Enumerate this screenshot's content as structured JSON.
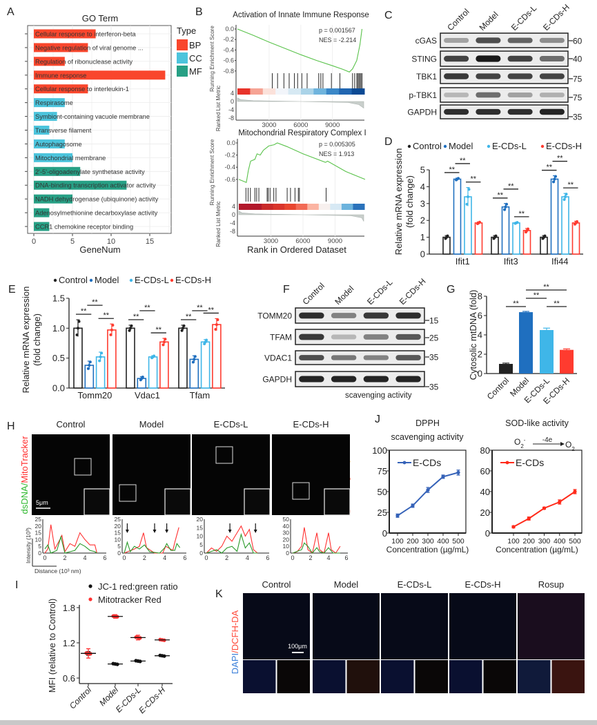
{
  "panel_labels": {
    "A": "A",
    "B": "B",
    "C": "C",
    "D": "D",
    "E": "E",
    "F": "F",
    "G": "G",
    "H": "H",
    "I": "I",
    "J": "J",
    "K": "K"
  },
  "colors": {
    "BP": "#f9462c",
    "CC": "#4cc4dc",
    "MF": "#27a085",
    "control": "#222222",
    "model": "#1f6fbf",
    "ecds_l": "#3fb6e8",
    "ecds_h": "#ff3b2f",
    "gsea_curve": "#59c24a",
    "dsDNA": "#2eb82e",
    "mitotracker": "#ff3030",
    "dapi": "#3a7fd9",
    "dcfh": "#ff4a3a"
  },
  "chart_data": [
    {
      "type": "bar",
      "orientation": "horizontal",
      "title": "GO Term",
      "xlabel": "GeneNum",
      "xticks": [
        0,
        5,
        10,
        15
      ],
      "legend_title": "Type",
      "legend": [
        "BP",
        "CC",
        "MF"
      ],
      "legend_placement": "right",
      "categories": [
        "Cellular response to interferon-beta",
        "Negative regulation of viral genome ...",
        "Regulation of ribonuclease activity",
        "Immune response",
        "Cellular response to interleukin-1",
        "Respirasome",
        "Symbiont-containing vacuole membrane",
        "Transverse filament",
        "Autophagosome",
        "Mitochondrial membrane",
        "2'-5'-oligoadenylate synthetase activity",
        "DNA-binding transcription activator activity",
        "NADH dehydrogenase (ubiquinone) activity",
        "Adenosylmethionine decarboxylase activity",
        "CCR1 chemokine receptor binding"
      ],
      "values": [
        8,
        7,
        4,
        17,
        7,
        4,
        3,
        2,
        4,
        5,
        6,
        12,
        5,
        2,
        2
      ],
      "types": [
        "BP",
        "BP",
        "BP",
        "BP",
        "BP",
        "CC",
        "CC",
        "CC",
        "CC",
        "CC",
        "MF",
        "MF",
        "MF",
        "MF",
        "MF"
      ],
      "grid": true
    },
    {
      "type": "line",
      "title": "Activation of Innate Immune Response",
      "p_text": "p = 0.001567",
      "nes_text": "NES = -2.214",
      "ylabel": "Running Enrichment Score",
      "ylabel2": "Ranked List Metric",
      "yticks": [
        "0.0",
        "-0.2",
        "-0.4",
        "-0.6",
        "-0.8"
      ],
      "metric_ticks": [
        "4",
        "0",
        "-4",
        "-8"
      ],
      "xticks": [
        3000,
        6000,
        9000
      ],
      "curve": [
        [
          0,
          0.0
        ],
        [
          1500,
          -0.12
        ],
        [
          3000,
          -0.25
        ],
        [
          4500,
          -0.37
        ],
        [
          6000,
          -0.49
        ],
        [
          7500,
          -0.6
        ],
        [
          9000,
          -0.7
        ],
        [
          10000,
          -0.77
        ],
        [
          10600,
          -0.82
        ],
        [
          10900,
          -0.76
        ],
        [
          11300,
          -0.6
        ],
        [
          11600,
          -0.3
        ],
        [
          11800,
          0.0
        ]
      ],
      "hits": [
        3300,
        3800,
        4400,
        4900,
        5400,
        5700,
        6100,
        6600,
        7700,
        7900,
        8100,
        8900,
        9700,
        10900,
        11100,
        11300,
        11400,
        11500,
        11600,
        11700,
        11800
      ],
      "colorbar": [
        "#e8332a",
        "#f6a394",
        "#fbe1da",
        "#f2f5fa",
        "#d6e9f3",
        "#aad3e8",
        "#6fb4dd",
        "#3b88c8",
        "#2166b1",
        "#0b4a94"
      ]
    },
    {
      "type": "line",
      "title": "Mitochondrial Respiratory Complex I",
      "p_text": "p = 0.005305",
      "nes_text": "NES = 1.913",
      "ylabel": "Running Enrichment Score",
      "ylabel2": "Ranked List Metric",
      "xlabel": "Rank in Ordered Dataset",
      "yticks": [
        "0.0",
        "-0.2",
        "-0.4",
        "-0.6"
      ],
      "metric_ticks": [
        "4",
        "0",
        "-4",
        "-8"
      ],
      "xticks": [
        3000,
        6000,
        9000
      ],
      "curve": [
        [
          0,
          -0.6
        ],
        [
          700,
          -0.65
        ],
        [
          900,
          -0.45
        ],
        [
          1100,
          -0.3
        ],
        [
          1500,
          -0.27
        ],
        [
          1700,
          -0.18
        ],
        [
          2000,
          -0.2
        ],
        [
          2300,
          -0.12
        ],
        [
          2800,
          -0.05
        ],
        [
          3300,
          -0.03
        ],
        [
          3600,
          0.0
        ],
        [
          4500,
          -0.06
        ],
        [
          6000,
          -0.18
        ],
        [
          8100,
          -0.32
        ],
        [
          8300,
          -0.3
        ],
        [
          10000,
          -0.47
        ],
        [
          11800,
          -0.6
        ]
      ],
      "hits": [
        667,
        875,
        1083,
        1500,
        1667,
        1875,
        2646,
        2750,
        2917,
        3271,
        3479,
        4521,
        4833,
        5250,
        5563,
        5667,
        8167
      ],
      "colorbar": [
        "#b2182b",
        "#b2182b",
        "#c92a2a",
        "#d9342b",
        "#e8452f",
        "#f26a55",
        "#fbb4a2",
        "#f7f0ee",
        "#d7e9f4",
        "#6cb3dd",
        "#2a72bb"
      ]
    },
    {
      "type": "bar",
      "legend": [
        "Control",
        "Model",
        "E-CDs-L",
        "E-CDs-H"
      ],
      "ylabel": "Relative mRNA expression",
      "ylabel2": "(fold change)",
      "categories": [
        "Ifit1",
        "Ifit3",
        "Ifi44"
      ],
      "yticks": [
        0,
        1,
        2,
        3,
        4,
        5
      ],
      "ylim": [
        0,
        5
      ],
      "series": [
        {
          "name": "Control",
          "values": [
            1.0,
            1.0,
            1.0
          ],
          "sd": [
            0.1,
            0.1,
            0.1
          ]
        },
        {
          "name": "Model",
          "values": [
            4.45,
            2.8,
            4.45
          ],
          "sd": [
            0.06,
            0.2,
            0.2
          ]
        },
        {
          "name": "E-CDs-L",
          "values": [
            3.4,
            1.85,
            3.4
          ],
          "sd": [
            0.55,
            0.04,
            0.2
          ]
        },
        {
          "name": "E-CDs-H",
          "values": [
            1.85,
            1.4,
            1.85
          ],
          "sd": [
            0.06,
            0.12,
            0.1
          ]
        }
      ],
      "significance": "**"
    },
    {
      "type": "bar",
      "legend": [
        "Control",
        "Model",
        "E-CDs-L",
        "E-CDs-H"
      ],
      "ylabel": "Relative mRNA expression",
      "ylabel2": "(fold change)",
      "categories": [
        "Tomm20",
        "Vdac1",
        "Tfam"
      ],
      "yticks": [
        "0.0",
        "0.5",
        "1.0",
        "1.5"
      ],
      "ylim": [
        0,
        1.5
      ],
      "series": [
        {
          "name": "Control",
          "values": [
            1.0,
            1.0,
            1.0
          ],
          "sd": [
            0.14,
            0.05,
            0.05
          ]
        },
        {
          "name": "Model",
          "values": [
            0.38,
            0.16,
            0.48
          ],
          "sd": [
            0.07,
            0.03,
            0.06
          ]
        },
        {
          "name": "E-CDs-L",
          "values": [
            0.52,
            0.52,
            0.77
          ],
          "sd": [
            0.08,
            0.02,
            0.04
          ]
        },
        {
          "name": "E-CDs-H",
          "values": [
            0.97,
            0.77,
            1.06
          ],
          "sd": [
            0.1,
            0.06,
            0.1
          ]
        }
      ],
      "significance": "**"
    },
    {
      "type": "bar",
      "ylabel": "Cytosolic mtDNA (fold)",
      "categories": [
        "Control",
        "Model",
        "E-CDs-L",
        "E-CDs-H"
      ],
      "values": [
        1.0,
        6.35,
        4.5,
        2.45
      ],
      "sd": [
        0.08,
        0.08,
        0.2,
        0.1
      ],
      "yticks": [
        0,
        2,
        4,
        6,
        8
      ],
      "ylim": [
        0,
        8
      ],
      "significance": "**"
    },
    {
      "type": "scatter",
      "ylabel": "MFI (relative to Control)",
      "categories": [
        "Control",
        "Model",
        "E-CDs-L",
        "E-CDs-H"
      ],
      "yticks": [
        "0.6",
        "1.2",
        "1.8"
      ],
      "ylim": [
        0.6,
        1.8
      ],
      "series": [
        {
          "name": "JC-1 red:green ratio",
          "values": [
            1.02,
            0.84,
            0.89,
            0.98
          ],
          "sd": [
            0.03,
            0.01,
            0.01,
            0.01
          ]
        },
        {
          "name": "Mitotracker Red",
          "values": [
            1.02,
            1.65,
            1.29,
            1.25
          ],
          "sd": [
            0.08,
            0.03,
            0.04,
            0.01
          ]
        }
      ]
    },
    {
      "type": "line",
      "title": "DPPH",
      "subtitle": "scavenging activity",
      "xlabel": "Concentration (µg/mL)",
      "x": [
        100,
        200,
        300,
        400,
        500
      ],
      "yticks": [
        0,
        25,
        50,
        75,
        100
      ],
      "ylim": [
        0,
        100
      ],
      "series": [
        {
          "name": "E-CDs",
          "values": [
            21,
            33,
            52,
            68,
            73
          ],
          "sd": [
            2,
            2,
            3,
            2,
            3
          ]
        }
      ]
    },
    {
      "type": "line",
      "title": "SOD-like activity",
      "equation": {
        "left": "O",
        "left_sub": "2",
        "left_sup": "-",
        "arrow_label": "-4e",
        "arrow_sup": "-",
        "right": "O",
        "right_sub": "2"
      },
      "xlabel": "Concentration (µg/mL)",
      "x": [
        100,
        200,
        300,
        400,
        500
      ],
      "yticks": [
        0,
        20,
        40,
        60,
        80
      ],
      "ylim": [
        0,
        80
      ],
      "series": [
        {
          "name": "E-CDs",
          "values": [
            6,
            14,
            24,
            30,
            40
          ],
          "sd": [
            1,
            1.5,
            1,
            2,
            2
          ]
        }
      ]
    },
    {
      "type": "line",
      "title": "Control",
      "ylabel": "Intensity (10³)",
      "xlabel": "Distance   (10³ nm)",
      "xticks": [
        0,
        2,
        4,
        6
      ],
      "yticks": [
        0,
        5,
        10,
        15,
        20,
        25
      ],
      "ylim": [
        0,
        25
      ],
      "red": [
        [
          0,
          0
        ],
        [
          0.3,
          3
        ],
        [
          0.6,
          21
        ],
        [
          1,
          3
        ],
        [
          1.5,
          10
        ],
        [
          1.7,
          13
        ],
        [
          2,
          1
        ],
        [
          2.5,
          7
        ],
        [
          3,
          5
        ],
        [
          3.5,
          15
        ],
        [
          4,
          10
        ],
        [
          4.5,
          6
        ],
        [
          5,
          6
        ],
        [
          5.2,
          0
        ]
      ],
      "green": [
        [
          0,
          3
        ],
        [
          0.3,
          6
        ],
        [
          0.6,
          0
        ],
        [
          1.2,
          2
        ],
        [
          1.6,
          12
        ],
        [
          2,
          0
        ],
        [
          3,
          2
        ],
        [
          3.5,
          7
        ],
        [
          4,
          5
        ],
        [
          4.5,
          2
        ],
        [
          5,
          1
        ],
        [
          5.2,
          0
        ]
      ],
      "arrows": []
    },
    {
      "type": "line",
      "title": "Model",
      "xticks": [
        0,
        2,
        4,
        6
      ],
      "yticks": [
        0,
        5,
        10,
        15,
        20,
        25
      ],
      "ylim": [
        0,
        25
      ],
      "red": [
        [
          0,
          0
        ],
        [
          1,
          3
        ],
        [
          1.5,
          5
        ],
        [
          1.9,
          15
        ],
        [
          2.2,
          4
        ],
        [
          3,
          0
        ],
        [
          3.8,
          0
        ],
        [
          4.1,
          5
        ],
        [
          4.8,
          2
        ],
        [
          5,
          8
        ],
        [
          5.4,
          19
        ]
      ],
      "green": [
        [
          0,
          0
        ],
        [
          0.3,
          8
        ],
        [
          0.6,
          1
        ],
        [
          1,
          5
        ],
        [
          1.5,
          3
        ],
        [
          2,
          6
        ],
        [
          2.5,
          1
        ],
        [
          3.5,
          0
        ],
        [
          4,
          4
        ],
        [
          4.2,
          7
        ],
        [
          4.6,
          2
        ],
        [
          5,
          2
        ],
        [
          5.2,
          7
        ],
        [
          5.5,
          4
        ]
      ],
      "arrows": [
        0.3,
        3.0,
        4.2
      ]
    },
    {
      "type": "line",
      "title": "E-CDs-L",
      "xticks": [
        0,
        2,
        4,
        6
      ],
      "yticks": [
        0,
        5,
        10,
        15,
        20
      ],
      "ylim": [
        0,
        20
      ],
      "red": [
        [
          0,
          0
        ],
        [
          0.5,
          3
        ],
        [
          1,
          1
        ],
        [
          1.5,
          4
        ],
        [
          2,
          10
        ],
        [
          2.5,
          7
        ],
        [
          3,
          12
        ],
        [
          3.4,
          16
        ],
        [
          3.8,
          10
        ],
        [
          4.2,
          14
        ],
        [
          4.6,
          2
        ],
        [
          5,
          0
        ]
      ],
      "green": [
        [
          0,
          0
        ],
        [
          1,
          2
        ],
        [
          1.5,
          0
        ],
        [
          2,
          3
        ],
        [
          2.5,
          4
        ],
        [
          3,
          1
        ],
        [
          3.4,
          11
        ],
        [
          3.8,
          3
        ],
        [
          4.2,
          6
        ],
        [
          4.6,
          0
        ],
        [
          5,
          0
        ]
      ],
      "arrows": [
        2.3,
        4.8
      ]
    },
    {
      "type": "line",
      "title": "E-CDs-H",
      "xticks": [
        0,
        2,
        4,
        6
      ],
      "yticks": [
        0,
        10,
        20,
        30,
        40,
        50
      ],
      "ylim": [
        0,
        50
      ],
      "red": [
        [
          0,
          0
        ],
        [
          0.5,
          2
        ],
        [
          1,
          10
        ],
        [
          1.3,
          38
        ],
        [
          1.7,
          5
        ],
        [
          2.2,
          0
        ],
        [
          2.7,
          30
        ],
        [
          3,
          5
        ],
        [
          3.5,
          0
        ],
        [
          4,
          30
        ],
        [
          4.3,
          5
        ],
        [
          4.8,
          0
        ],
        [
          5.3,
          10
        ]
      ],
      "green": [
        [
          0,
          0
        ],
        [
          1,
          5
        ],
        [
          1.3,
          15
        ],
        [
          1.7,
          10
        ],
        [
          2.2,
          0
        ],
        [
          2.7,
          8
        ],
        [
          3,
          2
        ],
        [
          3.5,
          0
        ],
        [
          4,
          8
        ],
        [
          4.5,
          0
        ],
        [
          5.3,
          0
        ]
      ],
      "arrows": []
    }
  ],
  "blots": {
    "C": {
      "lanes": [
        "Control",
        "Model",
        "E-CDs-L",
        "E-CDs-H"
      ],
      "rows": [
        {
          "label": "cGAS",
          "kda": "60",
          "intensity": [
            0.35,
            0.75,
            0.65,
            0.45
          ]
        },
        {
          "label": "STING",
          "kda": "40",
          "intensity": [
            0.8,
            1.0,
            0.8,
            0.6
          ]
        },
        {
          "label": "TBK1",
          "kda": "75",
          "intensity": [
            0.85,
            0.8,
            0.8,
            0.8
          ]
        },
        {
          "label": "p-TBK1",
          "kda": "75",
          "intensity": [
            0.25,
            0.6,
            0.35,
            0.28
          ]
        },
        {
          "label": "GAPDH",
          "kda": "35",
          "intensity": [
            0.9,
            0.9,
            0.9,
            0.95
          ]
        }
      ]
    },
    "F": {
      "lanes": [
        "Control",
        "Model",
        "E-CDs-L",
        "E-CDs-H"
      ],
      "rows": [
        {
          "label": "TOMM20",
          "kda": "15",
          "intensity": [
            0.9,
            0.5,
            0.85,
            0.9
          ]
        },
        {
          "label": "TFAM",
          "kda": "25",
          "intensity": [
            0.85,
            0.25,
            0.5,
            0.7
          ]
        },
        {
          "label": "VDAC1",
          "kda": "35",
          "intensity": [
            0.75,
            0.55,
            0.5,
            0.7
          ]
        },
        {
          "label": "GAPDH",
          "kda": "35",
          "intensity": [
            0.95,
            0.95,
            0.95,
            0.95
          ]
        }
      ],
      "footer": "scavenging activity"
    }
  },
  "microscopy": {
    "H": {
      "titles": [
        "Control",
        "Model",
        "E-CDs-L",
        "E-CDs-H"
      ],
      "label_green": "dsDNA",
      "label_sep": "/",
      "label_red": "MitoTracker",
      "scale_bar": "5μm"
    },
    "K": {
      "titles": [
        "Control",
        "Model",
        "E-CDs-L",
        "E-CDs-H",
        "Rosup"
      ],
      "label_blue": "DAPI",
      "label_red": "/DCFH-DA",
      "scale_bar": "100μm"
    }
  }
}
